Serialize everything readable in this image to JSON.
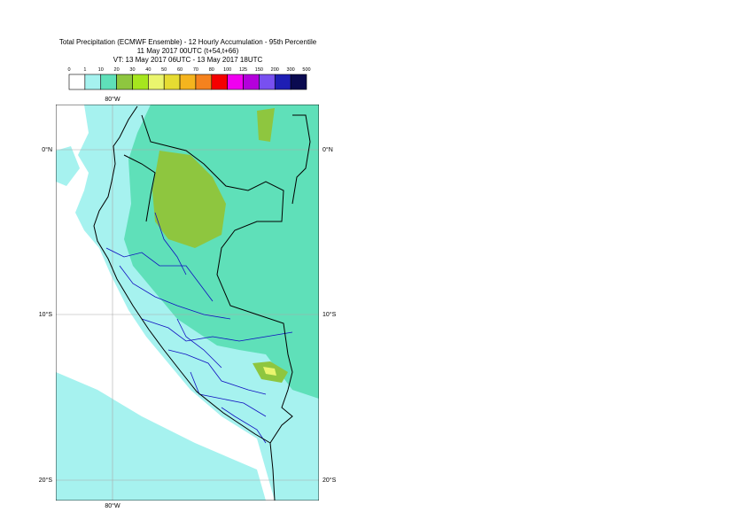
{
  "header": {
    "title": "Total Precipitation (ECMWF Ensemble) - 12 Hourly Accumulation - 95th Percentile",
    "run": "11 May 2017 00UTC (t+54,t+66)",
    "valid": "VT: 13 May 2017 06UTC - 13 May 2017 18UTC"
  },
  "legend": {
    "levels": [
      0,
      1,
      10,
      20,
      30,
      40,
      50,
      60,
      70,
      80,
      100,
      125,
      150,
      200,
      300,
      500
    ],
    "colors": [
      "#ffffff",
      "#a6f2ef",
      "#5fe0b9",
      "#8ec63f",
      "#a6e61e",
      "#eaf56e",
      "#e6dc32",
      "#f5b41e",
      "#f5821e",
      "#f50000",
      "#f000f0",
      "#b400dc",
      "#7850f0",
      "#1e1eb4",
      "#0a0a50"
    ]
  },
  "map": {
    "lon_top": "80°W",
    "lon_bottom": "80°W",
    "lat_left": [
      "0°N",
      "10°S",
      "20°S"
    ],
    "lat_right": [
      "0°N",
      "10°S",
      "20°S"
    ]
  }
}
